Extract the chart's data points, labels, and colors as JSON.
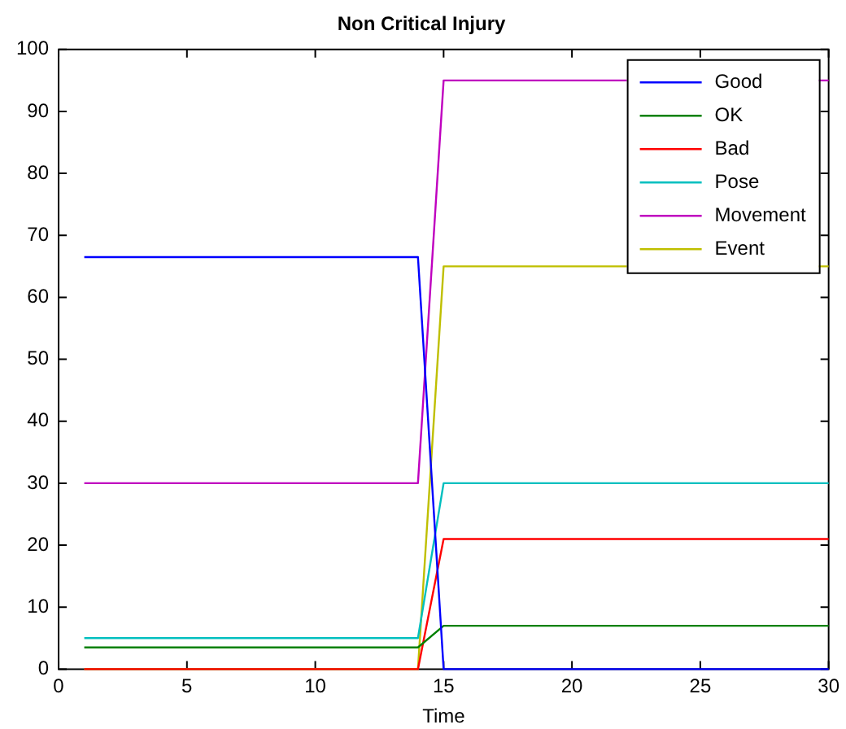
{
  "chart_data": {
    "type": "line",
    "title": "Non Critical Injury",
    "xlabel": "Time",
    "x": [
      1,
      14,
      15,
      30
    ],
    "series": [
      {
        "name": "Good",
        "color": "#0000ff",
        "values": [
          66.5,
          66.5,
          0,
          0
        ]
      },
      {
        "name": "OK",
        "color": "#008000",
        "values": [
          3.5,
          3.5,
          7,
          7
        ]
      },
      {
        "name": "Bad",
        "color": "#ff0000",
        "values": [
          0,
          0,
          21,
          21
        ]
      },
      {
        "name": "Pose",
        "color": "#00bfbf",
        "values": [
          5,
          5,
          30,
          30
        ]
      },
      {
        "name": "Movement",
        "color": "#bf00bf",
        "values": [
          30,
          30,
          95,
          95
        ]
      },
      {
        "name": "Event",
        "color": "#bfbf00",
        "values": [
          0,
          0,
          65,
          65
        ]
      }
    ],
    "xlim": [
      0,
      30
    ],
    "xticks": [
      0,
      5,
      10,
      15,
      20,
      25,
      30
    ],
    "ylim": [
      0,
      100
    ],
    "yticks": [
      0,
      10,
      20,
      30,
      40,
      50,
      60,
      70,
      80,
      90,
      100
    ],
    "grid": false,
    "legend": "top right",
    "marker": "none",
    "line_style": "solid"
  }
}
